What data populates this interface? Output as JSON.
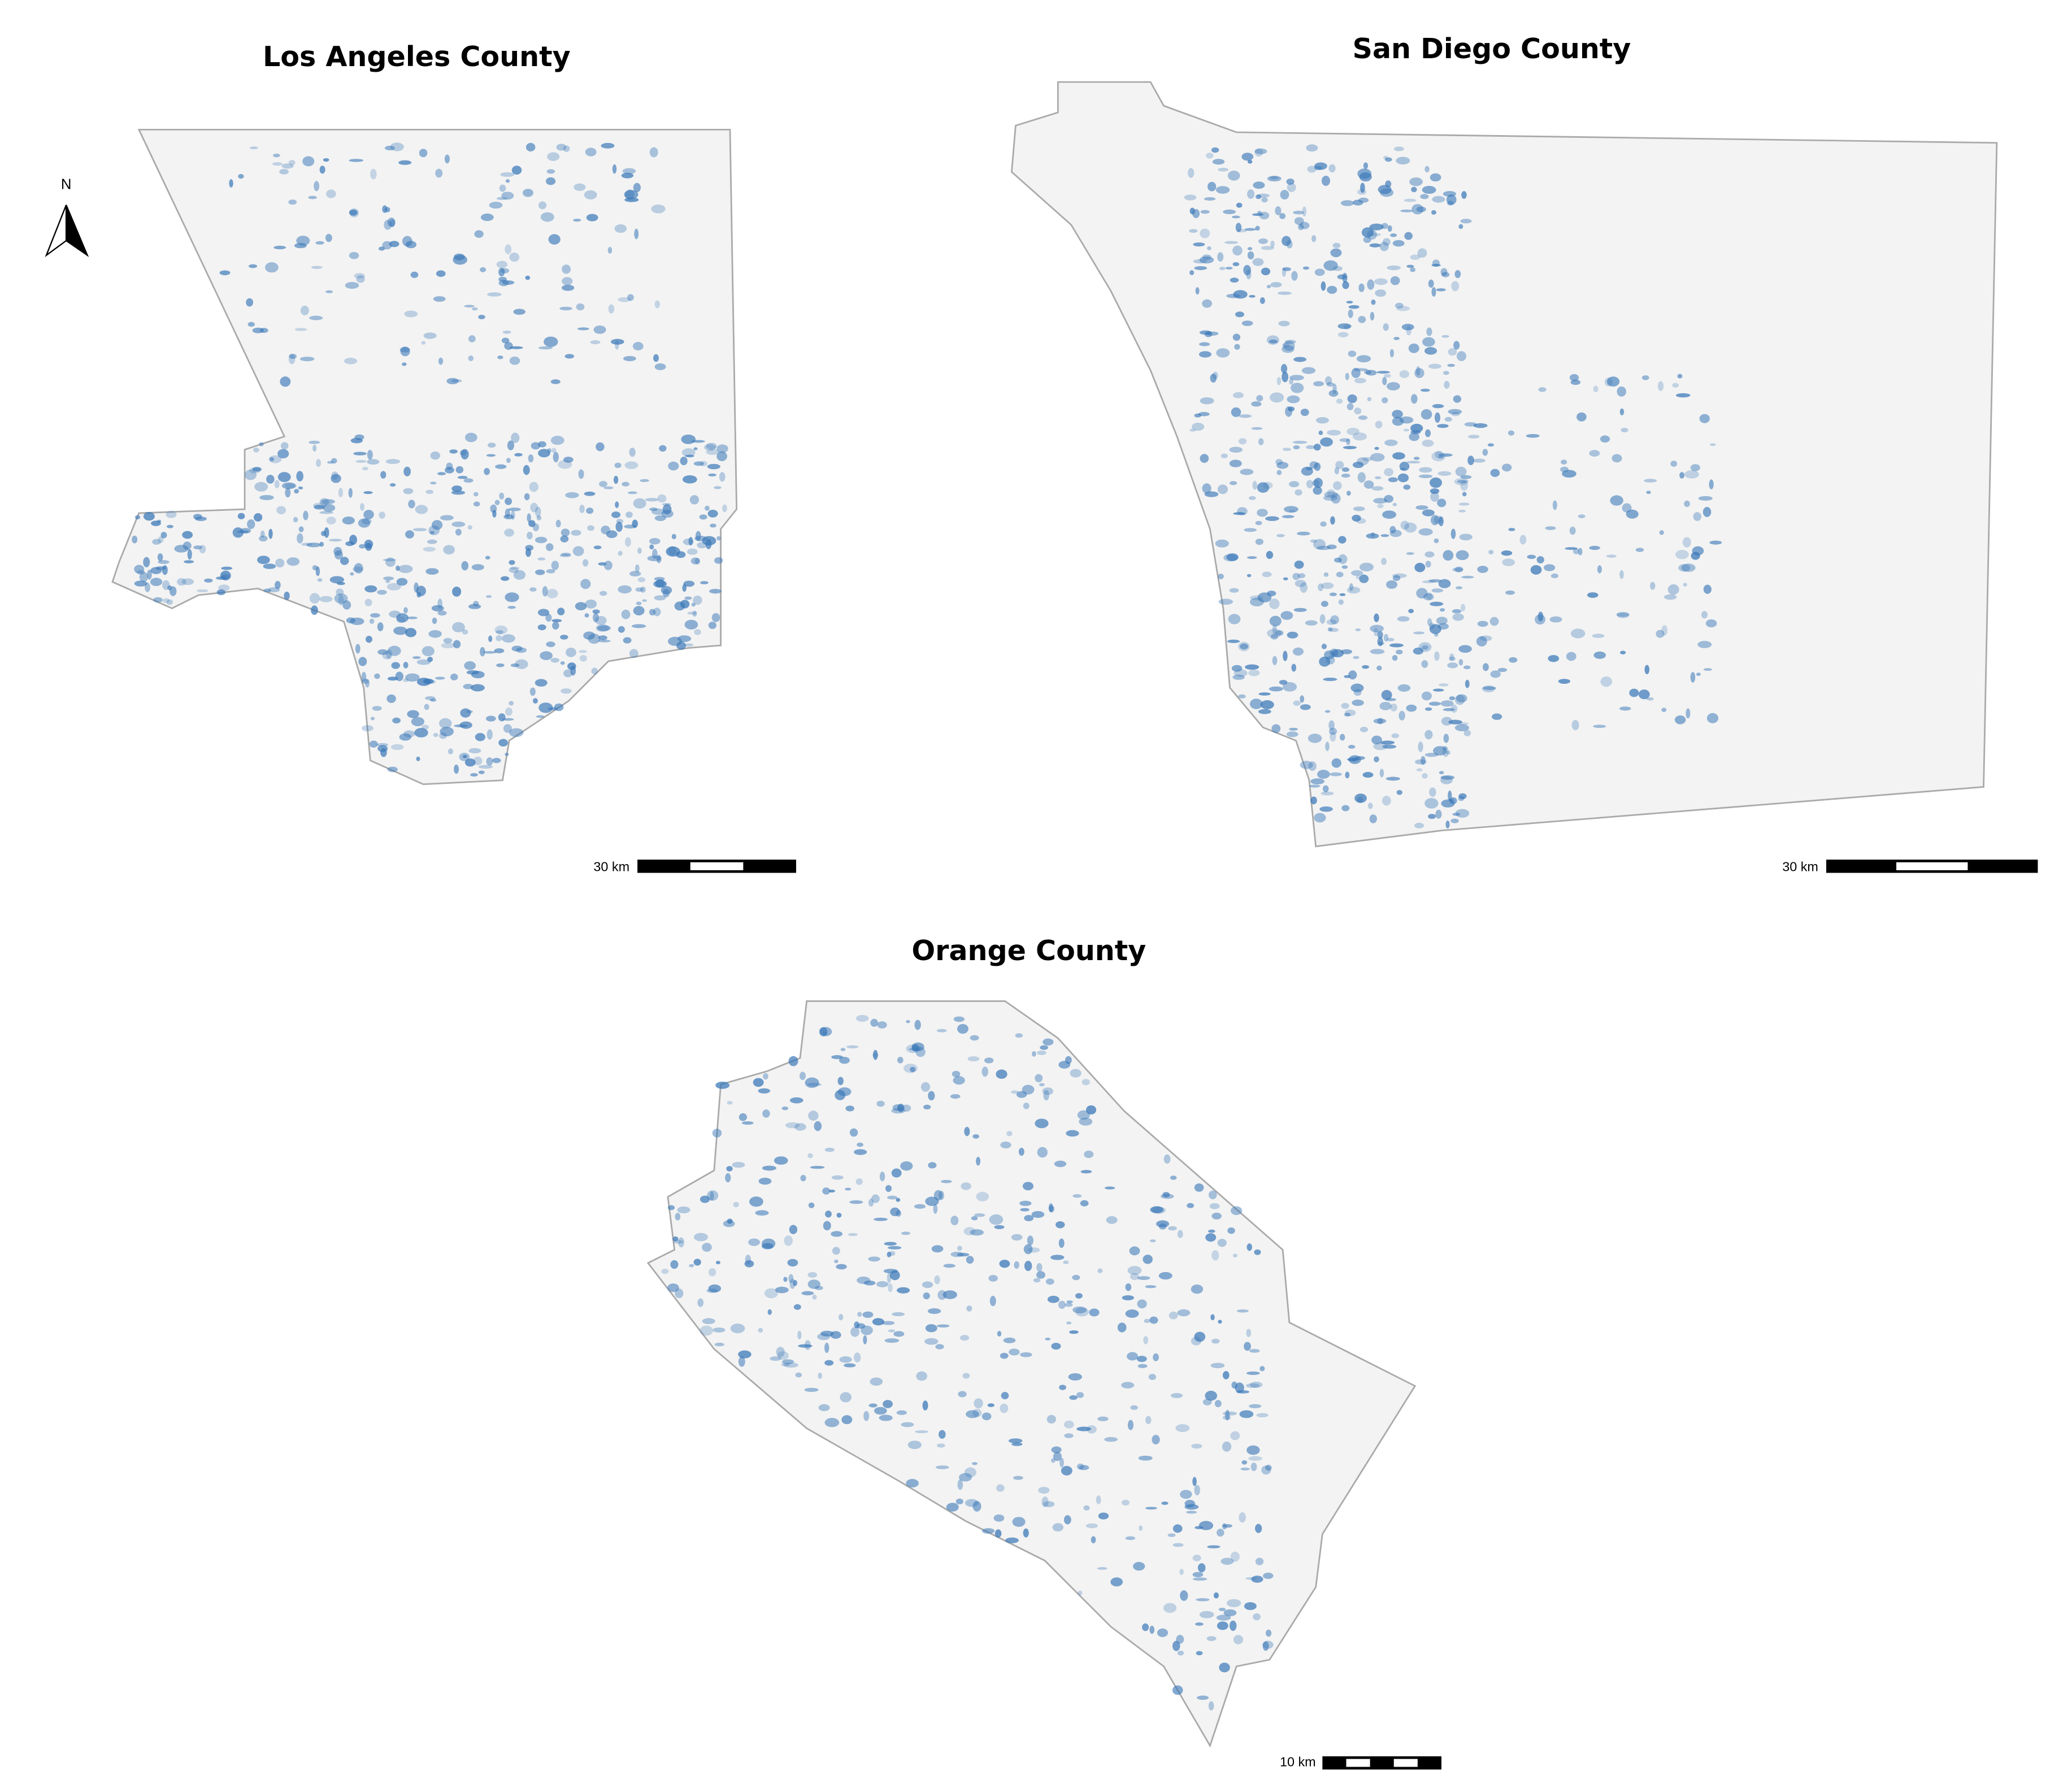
{
  "panels": [
    {
      "title": "Los Angeles County",
      "scale_label": "30 km"
    },
    {
      "title": "San Diego County",
      "scale_label": "30 km"
    },
    {
      "title": "Orange County",
      "scale_label": "10 km"
    }
  ],
  "north_label": "N"
}
